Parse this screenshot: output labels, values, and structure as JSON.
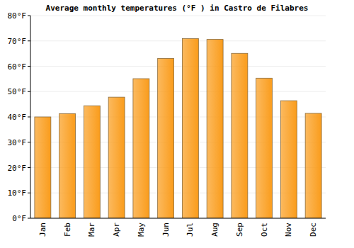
{
  "chart_data": {
    "type": "bar",
    "title": "Average monthly temperatures (°F ) in Castro de Filabres",
    "categories": [
      "Jan",
      "Feb",
      "Mar",
      "Apr",
      "May",
      "Jun",
      "Jul",
      "Aug",
      "Sep",
      "Oct",
      "Nov",
      "Dec"
    ],
    "values": [
      40.0,
      41.3,
      44.4,
      47.8,
      55.1,
      63.1,
      70.9,
      70.6,
      65.1,
      55.3,
      46.4,
      41.4
    ],
    "color": "#fa9c1b",
    "ylim": [
      0,
      80
    ],
    "yticks": [
      {
        "value": 0,
        "label": "0°F"
      },
      {
        "value": 10,
        "label": "10°F"
      },
      {
        "value": 20,
        "label": "20°F"
      },
      {
        "value": 30,
        "label": "30°F"
      },
      {
        "value": 40,
        "label": "40°F"
      },
      {
        "value": 50,
        "label": "50°F"
      },
      {
        "value": 60,
        "label": "60°F"
      },
      {
        "value": 70,
        "label": "70°F"
      },
      {
        "value": 80,
        "label": "80°F"
      }
    ],
    "grid": true
  }
}
